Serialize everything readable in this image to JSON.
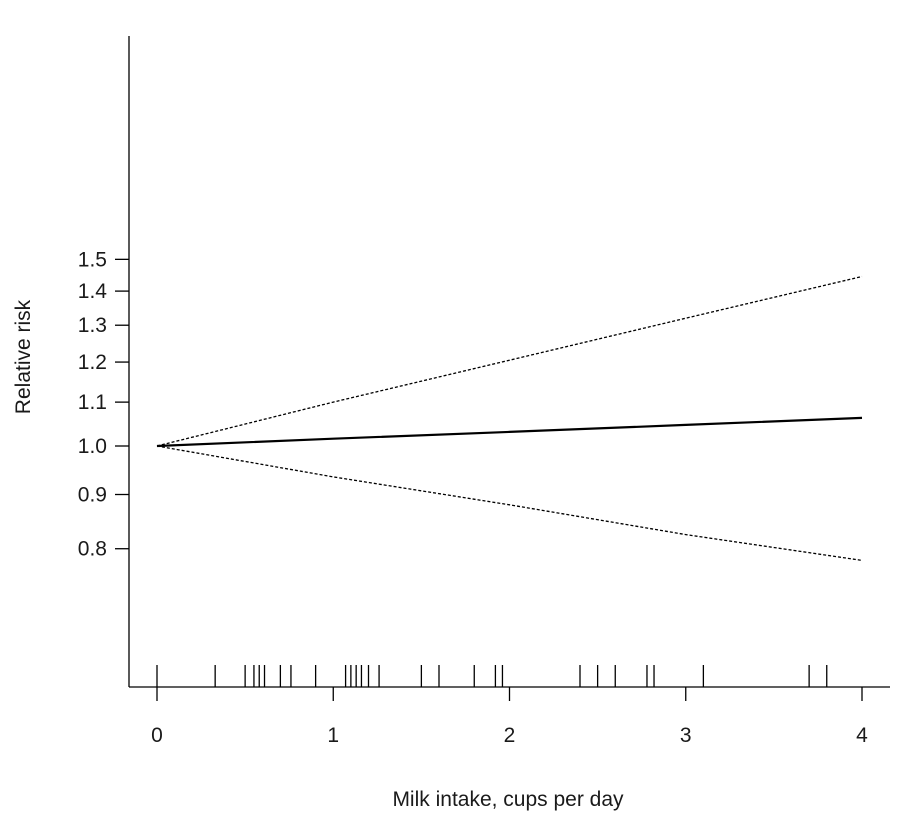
{
  "chart_data": {
    "type": "line",
    "title": "",
    "xlabel": "Milk intake, cups per day",
    "ylabel": "Relative risk",
    "y_scale": "log",
    "xlim": [
      0,
      4
    ],
    "ylim": [
      0.78,
      1.5
    ],
    "x_ticks": [
      0,
      1,
      2,
      3,
      4
    ],
    "x_tick_labels": [
      "0",
      "1",
      "2",
      "3",
      "4"
    ],
    "y_ticks": [
      0.8,
      0.9,
      1.0,
      1.1,
      1.2,
      1.3,
      1.4,
      1.5
    ],
    "y_tick_labels": [
      "0.8",
      "0.9",
      "1.0",
      "1.1",
      "1.2",
      "1.3",
      "1.4",
      "1.5"
    ],
    "grid": false,
    "series": [
      {
        "role": "estimate",
        "line_style": "solid",
        "x": [
          0,
          1,
          2,
          3,
          4
        ],
        "y": [
          1.0,
          1.016,
          1.031,
          1.047,
          1.063
        ]
      },
      {
        "role": "upper-ci",
        "line_style": "dashed",
        "x": [
          0,
          1,
          2,
          3,
          4
        ],
        "y": [
          1.0,
          1.1,
          1.205,
          1.32,
          1.445
        ]
      },
      {
        "role": "lower-ci",
        "line_style": "dashed",
        "x": [
          0,
          1,
          2,
          3,
          4
        ],
        "y": [
          1.0,
          0.935,
          0.88,
          0.825,
          0.78
        ]
      }
    ],
    "rug": [
      0,
      0.33,
      0.5,
      0.55,
      0.58,
      0.61,
      0.7,
      0.76,
      0.9,
      1.07,
      1.1,
      1.13,
      1.16,
      1.2,
      1.26,
      1.5,
      1.6,
      1.8,
      1.92,
      1.96,
      2.4,
      2.5,
      2.6,
      2.78,
      2.82,
      3.1,
      3.7,
      3.8
    ]
  }
}
